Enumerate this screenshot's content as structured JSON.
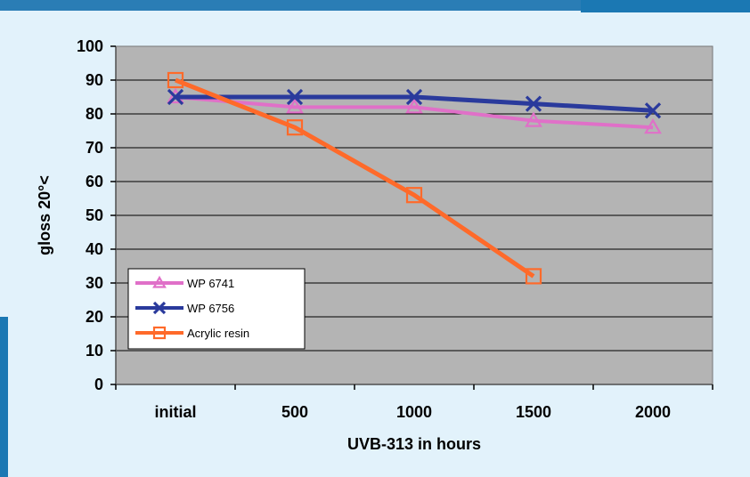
{
  "colors": {
    "frame": "#2a7db5",
    "background": "#e2f2fb",
    "plot_area": "#b4b4b4",
    "gridline": "#000000"
  },
  "chart_data": {
    "type": "line",
    "title": "",
    "xlabel": "UVB-313 in hours",
    "ylabel": "gloss 20°<",
    "categories": [
      "initial",
      "500",
      "1000",
      "1500",
      "2000"
    ],
    "ylim": [
      0,
      100
    ],
    "yticks": [
      0,
      10,
      20,
      30,
      40,
      50,
      60,
      70,
      80,
      90,
      100
    ],
    "grid": true,
    "legend_position": "bottom-left",
    "series": [
      {
        "name": "WP 6741",
        "color": "#e070c8",
        "marker": "triangle",
        "values": [
          85,
          82,
          82,
          78,
          76
        ]
      },
      {
        "name": "WP 6756",
        "color": "#2a3a9c",
        "marker": "x",
        "values": [
          85,
          85,
          85,
          83,
          81
        ]
      },
      {
        "name": "Acrylic resin",
        "color": "#ff6a2a",
        "marker": "square",
        "values": [
          90,
          76,
          56,
          32,
          null
        ]
      }
    ]
  }
}
